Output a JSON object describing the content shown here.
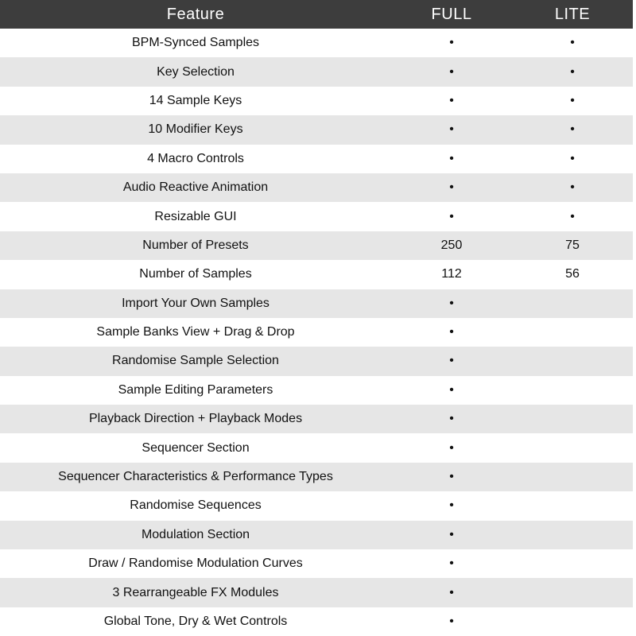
{
  "header": {
    "feature": "Feature",
    "full": "FULL",
    "lite": "LITE"
  },
  "colors": {
    "header_bg": "#3d3d3d",
    "stripe": "#e6e6e6"
  },
  "rows": [
    {
      "feature": "BPM-Synced Samples",
      "full": "•",
      "lite": "•"
    },
    {
      "feature": "Key Selection",
      "full": "•",
      "lite": "•"
    },
    {
      "feature": "14 Sample Keys",
      "full": "•",
      "lite": "•"
    },
    {
      "feature": "10 Modifier Keys",
      "full": "•",
      "lite": "•"
    },
    {
      "feature": "4 Macro Controls",
      "full": "•",
      "lite": "•"
    },
    {
      "feature": "Audio Reactive Animation",
      "full": "•",
      "lite": "•"
    },
    {
      "feature": "Resizable GUI",
      "full": "•",
      "lite": "•"
    },
    {
      "feature": "Number of Presets",
      "full": "250",
      "lite": "75"
    },
    {
      "feature": "Number of Samples",
      "full": "112",
      "lite": "56"
    },
    {
      "feature": "Import Your Own Samples",
      "full": "•",
      "lite": ""
    },
    {
      "feature": "Sample Banks View + Drag & Drop",
      "full": "•",
      "lite": ""
    },
    {
      "feature": "Randomise Sample Selection",
      "full": "•",
      "lite": ""
    },
    {
      "feature": "Sample Editing Parameters",
      "full": "•",
      "lite": ""
    },
    {
      "feature": "Playback Direction + Playback Modes",
      "full": "•",
      "lite": ""
    },
    {
      "feature": "Sequencer Section",
      "full": "•",
      "lite": ""
    },
    {
      "feature": "Sequencer Characteristics & Performance Types",
      "full": "•",
      "lite": ""
    },
    {
      "feature": "Randomise Sequences",
      "full": "•",
      "lite": ""
    },
    {
      "feature": "Modulation Section",
      "full": "•",
      "lite": ""
    },
    {
      "feature": "Draw / Randomise Modulation Curves",
      "full": "•",
      "lite": ""
    },
    {
      "feature": "3 Rearrangeable FX Modules",
      "full": "•",
      "lite": ""
    },
    {
      "feature": "Global Tone, Dry & Wet Controls",
      "full": "•",
      "lite": ""
    }
  ]
}
